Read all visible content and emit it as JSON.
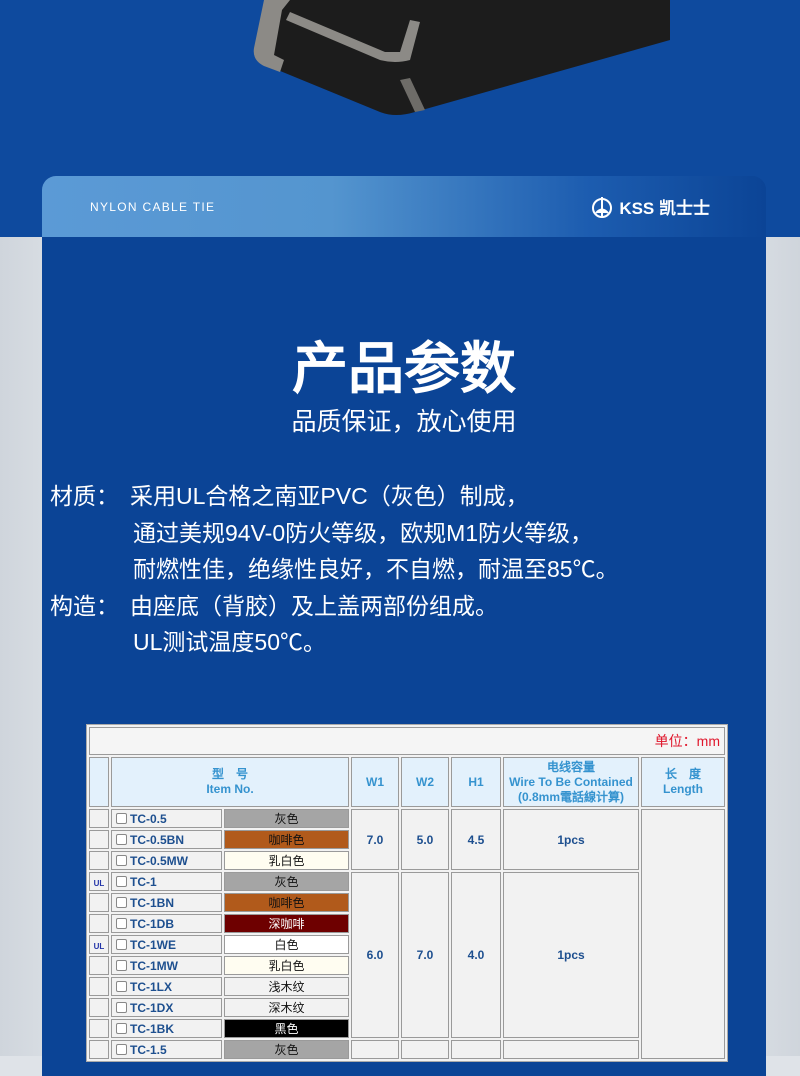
{
  "header": {
    "tag": "NYLON CABLE TIE",
    "brand": "KSS 凯士士"
  },
  "title": "产品参数",
  "subtitle": "品质保证，放心使用",
  "specs": [
    {
      "label": "材质：",
      "lines": [
        "采用UL合格之南亚PVC（灰色）制成，",
        "通过美规94V-0防火等级，欧规M1防火等级，",
        "耐燃性佳，绝缘性良好，不自燃，耐温至85℃。"
      ]
    },
    {
      "label": "构造：",
      "lines": [
        "由座底（背胶）及上盖两部份组成。",
        "UL测试温度50℃。"
      ]
    }
  ],
  "table": {
    "unit": "单位：mm",
    "headers": {
      "item": [
        "型　号",
        "Item No."
      ],
      "w1": "W1",
      "w2": "W2",
      "h1": "H1",
      "wire": [
        "电线容量",
        "Wire To Be Contained",
        "(0.8mm電話線计算)"
      ],
      "length": [
        "长　度",
        "Length"
      ]
    },
    "groups": [
      {
        "w1": "7.0",
        "w2": "5.0",
        "h1": "4.5",
        "wire": "1pcs",
        "rows": [
          {
            "ul": false,
            "item": "TC-0.5",
            "color": "灰色",
            "bg": "#a5a5a5",
            "fg": "#111"
          },
          {
            "ul": false,
            "item": "TC-0.5BN",
            "color": "咖啡色",
            "bg": "#b15a1b",
            "fg": "#111"
          },
          {
            "ul": false,
            "item": "TC-0.5MW",
            "color": "乳白色",
            "bg": "#fffdf1",
            "fg": "#111"
          }
        ]
      },
      {
        "w1": "6.0",
        "w2": "7.0",
        "h1": "4.0",
        "wire": "1pcs",
        "rows": [
          {
            "ul": true,
            "item": "TC-1",
            "color": "灰色",
            "bg": "#a5a5a5",
            "fg": "#111"
          },
          {
            "ul": false,
            "item": "TC-1BN",
            "color": "咖啡色",
            "bg": "#b15a1b",
            "fg": "#111"
          },
          {
            "ul": false,
            "item": "TC-1DB",
            "color": "深咖啡",
            "bg": "#6e0000",
            "fg": "#fff"
          },
          {
            "ul": true,
            "item": "TC-1WE",
            "color": "白色",
            "bg": "#ffffff",
            "fg": "#111"
          },
          {
            "ul": false,
            "item": "TC-1MW",
            "color": "乳白色",
            "bg": "#fffdf1",
            "fg": "#111"
          },
          {
            "ul": false,
            "item": "TC-1LX",
            "color": "浅木纹",
            "bg": "#f2f2f2",
            "fg": "#111"
          },
          {
            "ul": false,
            "item": "TC-1DX",
            "color": "深木纹",
            "bg": "#f2f2f2",
            "fg": "#111"
          },
          {
            "ul": false,
            "item": "TC-1BK",
            "color": "黑色",
            "bg": "#000000",
            "fg": "#fff"
          }
        ]
      },
      {
        "w1": "",
        "w2": "",
        "h1": "",
        "wire": "",
        "rows": [
          {
            "ul": false,
            "item": "TC-1.5",
            "color": "灰色",
            "bg": "#a5a5a5",
            "fg": "#111"
          }
        ]
      }
    ],
    "ul_mark": "UL"
  }
}
